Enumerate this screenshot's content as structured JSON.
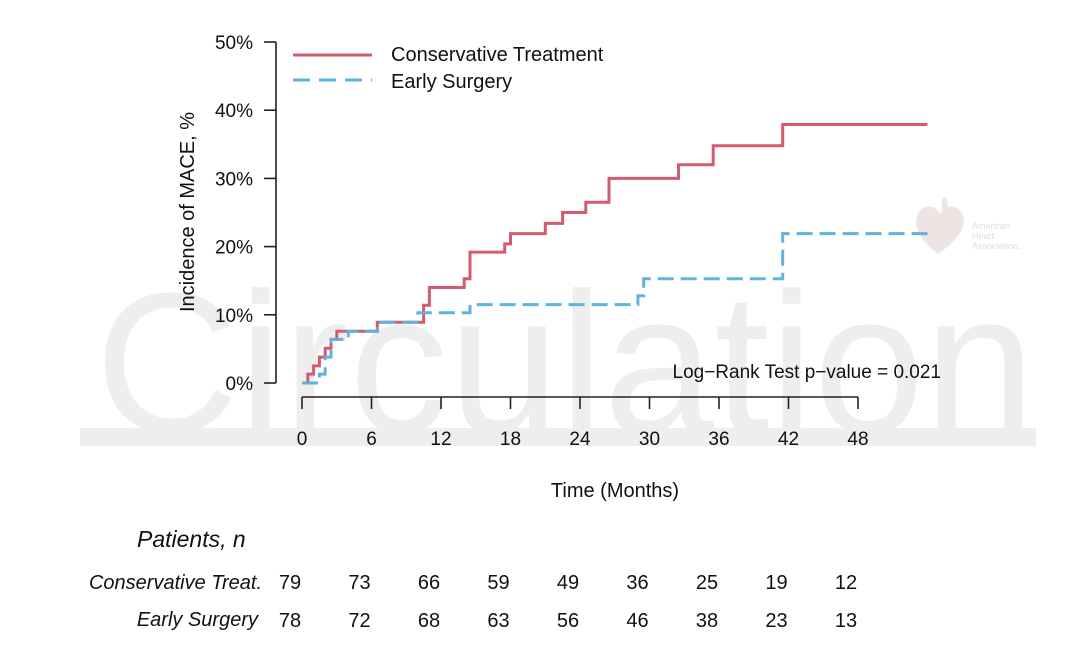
{
  "watermark": {
    "text": "Circulation",
    "logo_lines": [
      "American",
      "Heart",
      "Association."
    ]
  },
  "chart_data": {
    "type": "line",
    "xlabel": "Time (Months)",
    "ylabel": "Incidence of MACE, %",
    "xlim": [
      0,
      48
    ],
    "ylim": [
      0,
      50
    ],
    "xticks": [
      0,
      6,
      12,
      18,
      24,
      30,
      36,
      42,
      48
    ],
    "yticks": [
      0,
      10,
      20,
      30,
      40,
      50
    ],
    "ytick_labels": [
      "0%",
      "10%",
      "20%",
      "30%",
      "40%",
      "50%"
    ],
    "grid": false,
    "legend_position": "top-left",
    "annotation": "Log−Rank Test p−value = 0.021",
    "series": [
      {
        "name": "Conservative Treatment",
        "color": "#d45a70",
        "style": "solid",
        "x": [
          0,
          0.5,
          1,
          1.5,
          2,
          2.5,
          3,
          6,
          6.5,
          10,
          10.5,
          11,
          13.5,
          14,
          14.5,
          17,
          17.5,
          18,
          20.5,
          21,
          22,
          22.5,
          24,
          24.5,
          26,
          26.5,
          28,
          32,
          32.5,
          34,
          35,
          35.5,
          40,
          41,
          41.5,
          54
        ],
        "y": [
          0,
          1.3,
          2.5,
          3.8,
          5.1,
          6.4,
          7.6,
          7.6,
          8.9,
          8.9,
          11.4,
          14,
          14,
          15.3,
          19.2,
          19.2,
          20.4,
          21.9,
          21.9,
          23.4,
          23.4,
          25,
          25,
          26.5,
          26.5,
          30,
          30,
          30,
          32,
          32,
          32,
          34.8,
          34.8,
          34.8,
          37.9,
          37.9
        ]
      },
      {
        "name": "Early Surgery",
        "color": "#5fb3dd",
        "style": "dashed",
        "x": [
          0,
          1.5,
          2,
          2.5,
          4,
          6,
          6.5,
          9.5,
          10,
          12,
          14,
          14.5,
          28.5,
          29,
          29.5,
          41,
          41.5,
          54
        ],
        "y": [
          0,
          1.3,
          3.8,
          6.4,
          7.6,
          7.6,
          8.9,
          8.9,
          10.3,
          10.3,
          10.3,
          11.5,
          11.5,
          12.8,
          15.3,
          15.3,
          21.9,
          21.9
        ]
      }
    ]
  },
  "risk_table": {
    "title": "Patients, n",
    "rows": [
      {
        "label": "Conservative Treat.",
        "values": [
          "79",
          "73",
          "66",
          "59",
          "49",
          "36",
          "25",
          "19",
          "12"
        ]
      },
      {
        "label": "Early Surgery",
        "values": [
          "78",
          "72",
          "68",
          "63",
          "56",
          "46",
          "38",
          "23",
          "13"
        ]
      }
    ]
  }
}
